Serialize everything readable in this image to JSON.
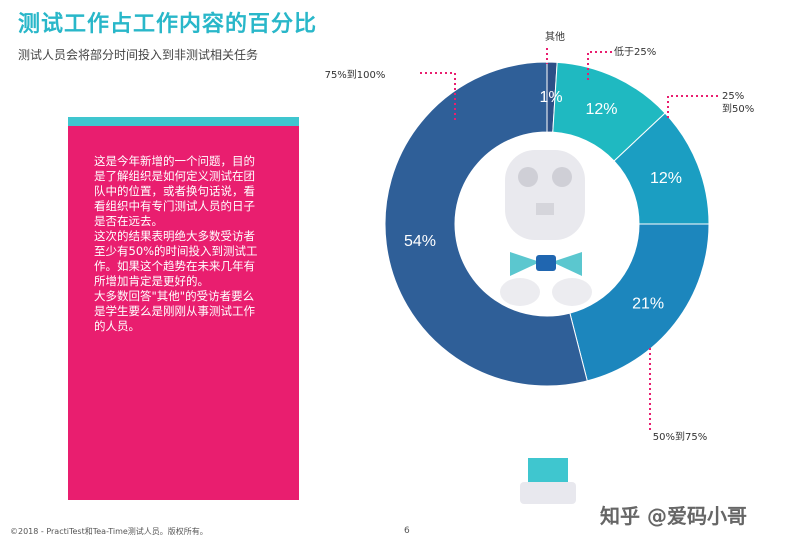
{
  "header": {
    "title": "测试工作占工作内容的百分比",
    "subtitle": "测试人员会将部分时间投入到非测试相关任务"
  },
  "note": {
    "lines": [
      "这是今年新增的一个问题，目的",
      "是了解组织是如何定义测试在团",
      "队中的位置，或者换句话说，看",
      "看组织中有专门测试人员的日子",
      "是否在远去。",
      "这次的结果表明绝大多数受访者",
      "至少有50%的时间投入到测试工",
      "作。如果这个趋势在未来几年有",
      "所增加肯定是更好的。",
      "大多数回答\"其他\"的受访者要么",
      "是学生要么是刚刚从事测试工作",
      "的人员。"
    ]
  },
  "chart_data": {
    "type": "pie",
    "donut": true,
    "start_angle_deg": 0,
    "direction": "clockwise",
    "slices": [
      {
        "label": "其他",
        "value": 1,
        "display": "1%",
        "color": "#2c4f86"
      },
      {
        "label": "低于25%",
        "value": 12,
        "display": "12%",
        "color": "#1fb9c1"
      },
      {
        "label": "25%\n到50%",
        "value": 12,
        "display": "12%",
        "color": "#1b9ec2"
      },
      {
        "label": "50%到75%",
        "value": 21,
        "display": "21%",
        "color": "#1c86bd"
      },
      {
        "label": "75%到100%",
        "value": 54,
        "display": "54%",
        "color": "#2f5f98"
      }
    ]
  },
  "footer": {
    "copyright": "©2018 - PractiTest和Tea-Time测试人员。版权所有。",
    "page": "6"
  },
  "watermark": "知乎 @爱码小哥"
}
